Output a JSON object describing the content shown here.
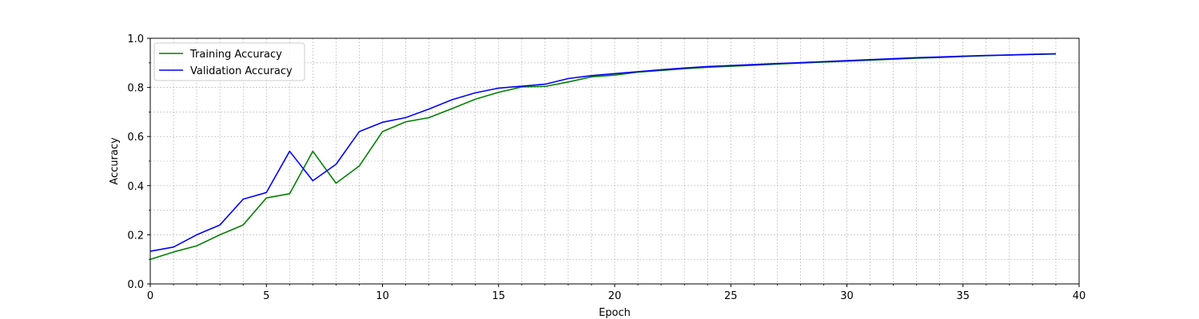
{
  "chart_data": {
    "type": "line",
    "xlabel": "Epoch",
    "ylabel": "Accuracy",
    "xlim": [
      0,
      40
    ],
    "ylim": [
      0.0,
      1.0
    ],
    "xticks": [
      0,
      5,
      10,
      15,
      20,
      25,
      30,
      35,
      40
    ],
    "xtick_labels": [
      "0",
      "5",
      "10",
      "15",
      "20",
      "25",
      "30",
      "35",
      "40"
    ],
    "yticks": [
      0.0,
      0.2,
      0.4,
      0.6,
      0.8,
      1.0
    ],
    "ytick_labels": [
      "0.0",
      "0.2",
      "0.4",
      "0.6",
      "0.8",
      "1.0"
    ],
    "grid": true,
    "grid_style": "dashed, major and minor",
    "legend_position": "upper-left",
    "x": [
      0,
      1,
      2,
      3,
      4,
      5,
      6,
      7,
      8,
      9,
      10,
      11,
      12,
      13,
      14,
      15,
      16,
      17,
      18,
      19,
      20,
      21,
      22,
      23,
      24,
      25,
      26,
      27,
      28,
      29,
      30,
      31,
      32,
      33,
      34,
      35,
      36,
      37,
      38,
      39
    ],
    "series": [
      {
        "name": "Training Accuracy",
        "color": "#008000",
        "values": [
          0.1,
          0.13,
          0.155,
          0.2,
          0.24,
          0.35,
          0.367,
          0.54,
          0.41,
          0.48,
          0.62,
          0.66,
          0.677,
          0.714,
          0.752,
          0.78,
          0.802,
          0.804,
          0.822,
          0.843,
          0.85,
          0.862,
          0.869,
          0.876,
          0.882,
          0.886,
          0.89,
          0.895,
          0.899,
          0.903,
          0.907,
          0.911,
          0.915,
          0.919,
          0.922,
          0.926,
          0.929,
          0.932,
          0.934,
          0.936
        ]
      },
      {
        "name": "Validation Accuracy",
        "color": "#0000ff",
        "values": [
          0.133,
          0.15,
          0.2,
          0.24,
          0.345,
          0.372,
          0.54,
          0.42,
          0.487,
          0.62,
          0.658,
          0.677,
          0.712,
          0.75,
          0.778,
          0.797,
          0.805,
          0.813,
          0.836,
          0.848,
          0.856,
          0.864,
          0.872,
          0.879,
          0.885,
          0.889,
          0.893,
          0.897,
          0.901,
          0.905,
          0.909,
          0.913,
          0.917,
          0.921,
          0.924,
          0.927,
          0.93,
          0.932,
          0.935,
          0.937
        ]
      }
    ]
  }
}
